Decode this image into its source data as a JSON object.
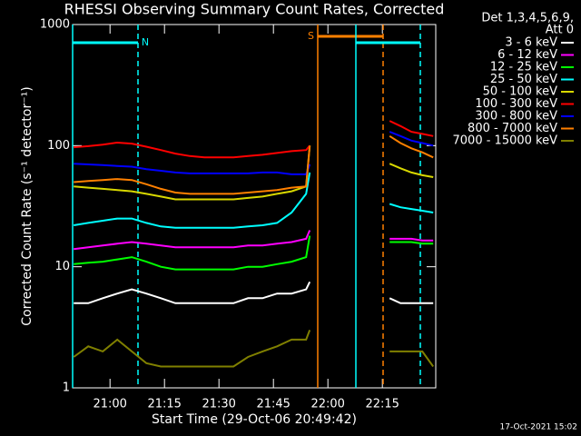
{
  "chart_data": {
    "type": "line",
    "title": "RHESSI Observing Summary Count Rates, Corrected",
    "x_label": "Start Time (29-Oct-06 20:49:42)",
    "y_label": "Corrected Count Rate (s⁻¹ detector⁻¹)",
    "legend_header": [
      "Det 1,3,4,5,6,9,",
      "Att 0"
    ],
    "footer": "17-Oct-2021 15:02",
    "log_y": true,
    "legend": "right",
    "xlim": [
      "20:49:42",
      "22:29:42"
    ],
    "xticks": [
      "21:00",
      "21:15",
      "21:30",
      "21:45",
      "22:00",
      "22:15"
    ],
    "ylim": [
      1,
      1000
    ],
    "yticks": [
      1,
      10,
      100,
      1000
    ],
    "x": [
      "20:50",
      "20:54",
      "20:58",
      "21:02",
      "21:06",
      "21:10",
      "21:14",
      "21:18",
      "21:22",
      "21:26",
      "21:30",
      "21:34",
      "21:38",
      "21:42",
      "21:46",
      "21:50",
      "21:54",
      "21:55",
      "22:00",
      "22:17",
      "22:20",
      "22:23",
      "22:26",
      "22:29"
    ],
    "series": [
      {
        "name": "3 - 6 keV",
        "color": "#ffffff",
        "values": [
          5,
          5,
          5.5,
          6,
          6.5,
          6,
          5.5,
          5,
          5,
          5,
          5,
          5,
          5.5,
          5.5,
          6,
          6,
          6.5,
          7.5,
          null,
          5.5,
          5,
          5,
          5,
          5
        ]
      },
      {
        "name": "6 - 12 keV",
        "color": "#ff00ff",
        "values": [
          14,
          14.5,
          15,
          15.5,
          16,
          15.5,
          15,
          14.5,
          14.5,
          14.5,
          14.5,
          14.5,
          15,
          15,
          15.5,
          16,
          17,
          20,
          null,
          17,
          17,
          17,
          16.5,
          16.5
        ]
      },
      {
        "name": "12 - 25 keV",
        "color": "#00ff00",
        "values": [
          10.5,
          10.8,
          11,
          11.5,
          12,
          11,
          10,
          9.5,
          9.5,
          9.5,
          9.5,
          9.5,
          10,
          10,
          10.5,
          11,
          12,
          18,
          null,
          16,
          16,
          16,
          15.5,
          15.5
        ]
      },
      {
        "name": "25 - 50 keV",
        "color": "#00ffff",
        "values": [
          22,
          23,
          24,
          25,
          25,
          23,
          21.5,
          21,
          21,
          21,
          21,
          21,
          21.5,
          22,
          23,
          28,
          40,
          60,
          null,
          33,
          31,
          30,
          29,
          28
        ]
      },
      {
        "name": "50 - 100 keV",
        "color": "#d8d800",
        "values": [
          46,
          45,
          44,
          43,
          42,
          40,
          38,
          36,
          36,
          36,
          36,
          36,
          37,
          38,
          40,
          42,
          46,
          100,
          null,
          71,
          65,
          60,
          57,
          55
        ]
      },
      {
        "name": "100 - 300 keV",
        "color": "#ff0000",
        "values": [
          97,
          99,
          102,
          106,
          104,
          98,
          92,
          86,
          82,
          80,
          80,
          80,
          82,
          84,
          87,
          90,
          92,
          100,
          null,
          160,
          145,
          130,
          125,
          120
        ]
      },
      {
        "name": "300 - 800 keV",
        "color": "#0000ff",
        "values": [
          71,
          70,
          69,
          68,
          67,
          64,
          62,
          60,
          59,
          59,
          59,
          59,
          59,
          60,
          60,
          58,
          58,
          70,
          null,
          130,
          120,
          110,
          105,
          100
        ]
      },
      {
        "name": "800 - 7000 keV",
        "color": "#ff8000",
        "values": [
          50,
          51,
          52,
          53,
          52,
          48,
          44,
          41,
          40,
          40,
          40,
          40,
          41,
          42,
          43,
          45,
          46,
          100,
          null,
          120,
          105,
          95,
          88,
          80
        ]
      },
      {
        "name": "7000 - 15000 keV",
        "color": "#808000",
        "values": [
          1.8,
          2.2,
          2,
          2.5,
          2,
          1.6,
          1.5,
          1.5,
          1.5,
          1.5,
          1.5,
          1.5,
          1.8,
          2,
          2.2,
          2.5,
          2.5,
          3,
          null,
          2,
          2,
          2,
          2,
          1.5
        ]
      }
    ],
    "flags": [
      {
        "label": "N",
        "color": "#00ffff",
        "start": "20:49:42",
        "end": "21:07:42"
      },
      {
        "label": "S",
        "color": "#ff8000",
        "start": "21:57:12",
        "end": "22:15:12"
      },
      {
        "color": "#00ffff",
        "start": "22:07:42",
        "end": "22:25:27"
      }
    ]
  }
}
